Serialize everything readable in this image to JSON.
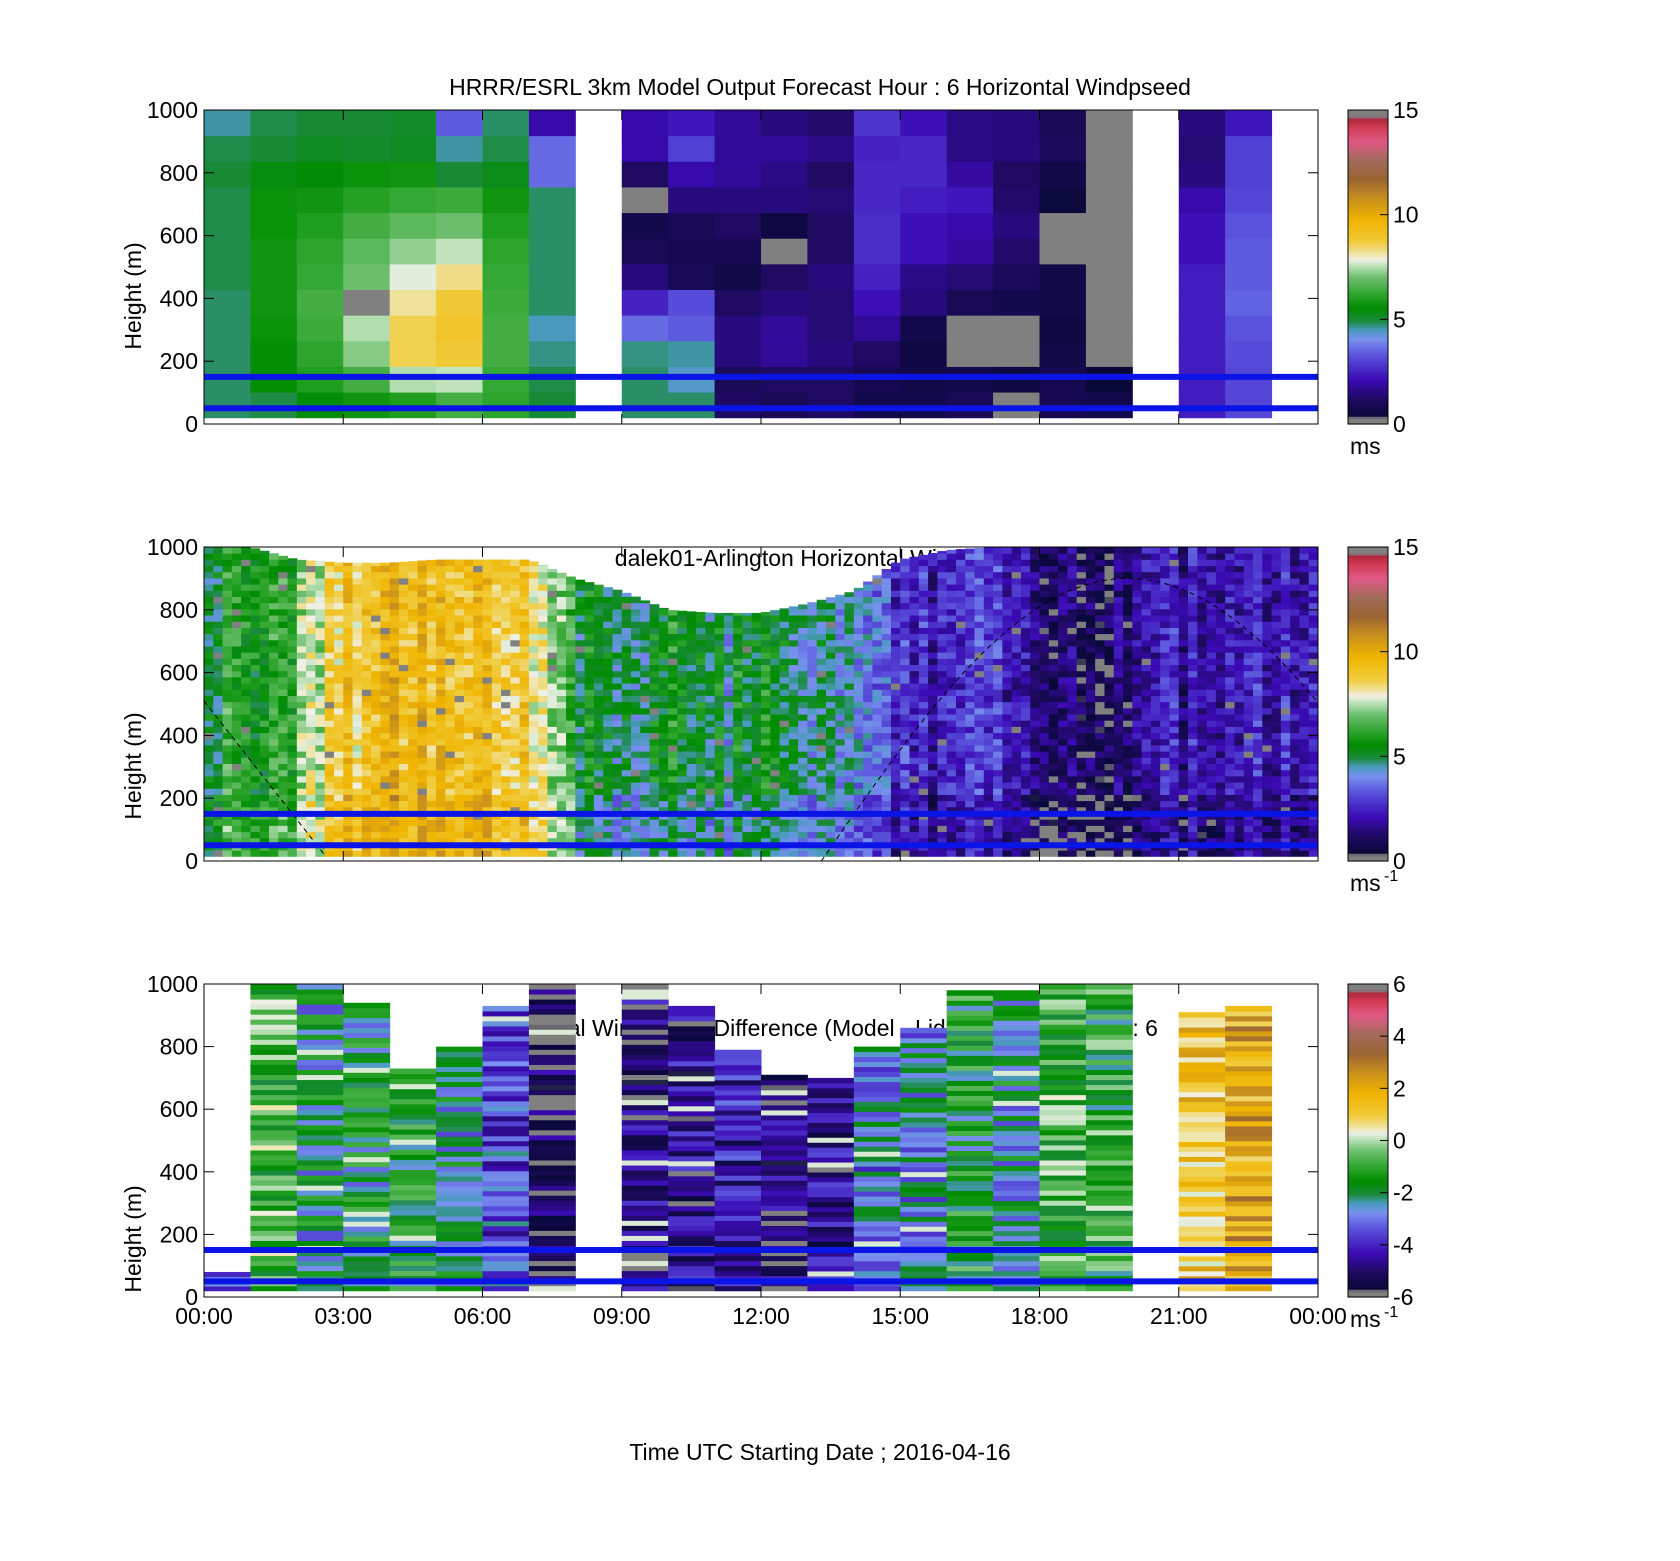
{
  "chart_data": [
    {
      "type": "heatmap",
      "title": "HRRR/ESRL 3km Model Output   Forecast Hour : 6 Horizontal Windpseed",
      "ylabel": "Height (m)",
      "xlabel": "",
      "ylim": [
        0,
        1000
      ],
      "y_ticks": [
        "0",
        "200",
        "400",
        "600",
        "800",
        "1000"
      ],
      "x_hours": [
        0,
        24
      ],
      "colorbar": {
        "range": [
          0,
          15
        ],
        "ticks": [
          "0",
          "5",
          "10",
          "15"
        ],
        "unit_label": "ms",
        "scale": "speed"
      },
      "reference_lines_m": [
        150,
        50
      ],
      "reference_line_color": "#0a14e6",
      "columns": [
        {
          "start_hour": 0.0,
          "values": [
            4.8,
            4.8,
            4.8,
            4.8,
            4.8,
            4.9,
            4.9,
            4.9,
            4.9,
            5.0,
            4.9,
            4.6
          ]
        },
        {
          "start_hour": 1.0,
          "values": [
            4.9,
            5.6,
            5.6,
            5.7,
            5.8,
            5.8,
            5.8,
            5.7,
            5.7,
            5.4,
            5.0,
            4.9
          ]
        },
        {
          "start_hour": 2.0,
          "values": [
            5.5,
            6.0,
            6.2,
            6.4,
            6.5,
            6.3,
            6.2,
            6.0,
            5.8,
            5.5,
            5.2,
            5.0
          ]
        },
        {
          "start_hour": 3.0,
          "values": [
            5.8,
            6.5,
            7.2,
            7.5,
            0.2,
            7.0,
            6.8,
            6.5,
            6.1,
            5.7,
            5.1,
            5.0
          ]
        },
        {
          "start_hour": 4.0,
          "values": [
            6.0,
            7.5,
            8.6,
            8.6,
            8.2,
            7.8,
            7.3,
            6.8,
            6.3,
            5.8,
            5.2,
            5.1
          ]
        },
        {
          "start_hour": 5.0,
          "values": [
            6.5,
            7.6,
            8.8,
            9.0,
            8.8,
            8.3,
            7.6,
            7.0,
            6.4,
            5.0,
            4.6,
            3.4
          ]
        },
        {
          "start_hour": 6.0,
          "values": [
            6.2,
            6.3,
            6.5,
            6.5,
            6.4,
            6.3,
            6.2,
            6.0,
            5.8,
            5.3,
            4.9,
            4.8
          ]
        },
        {
          "start_hour": 7.0,
          "values": [
            5.0,
            4.9,
            4.7,
            4.5,
            4.8,
            4.8,
            4.8,
            4.8,
            4.8,
            3.6,
            3.6,
            2.0
          ]
        },
        {
          "start_hour": 8.0,
          "values": []
        },
        {
          "start_hour": 9.0,
          "values": [
            4.8,
            4.8,
            4.7,
            3.6,
            2.5,
            1.5,
            1.0,
            0.8,
            0.1,
            1.2,
            2.0,
            2.0
          ]
        },
        {
          "start_hour": 10.0,
          "values": [
            4.8,
            4.4,
            4.6,
            3.4,
            3.2,
            1.0,
            0.9,
            1.0,
            1.5,
            2.0,
            3.0,
            2.3
          ]
        },
        {
          "start_hour": 11.0,
          "values": [
            1.2,
            1.0,
            1.5,
            1.5,
            1.2,
            0.7,
            0.9,
            1.2,
            1.5,
            1.8,
            1.8,
            1.8
          ]
        },
        {
          "start_hour": 12.0,
          "values": [
            1.0,
            1.2,
            1.8,
            1.8,
            1.5,
            1.2,
            0.2,
            0.6,
            1.5,
            1.6,
            1.8,
            1.5
          ]
        },
        {
          "start_hour": 13.0,
          "values": [
            1.2,
            1.2,
            1.5,
            1.4,
            1.4,
            1.5,
            1.2,
            1.2,
            1.4,
            1.2,
            1.6,
            1.3
          ]
        },
        {
          "start_hour": 14.0,
          "values": [
            0.8,
            0.9,
            1.2,
            1.8,
            2.2,
            2.5,
            2.7,
            2.7,
            2.6,
            2.6,
            2.5,
            2.8
          ]
        },
        {
          "start_hour": 15.0,
          "values": [
            0.8,
            0.7,
            0.6,
            0.8,
            1.5,
            1.6,
            2.2,
            2.2,
            2.4,
            2.6,
            2.6,
            2.2
          ]
        },
        {
          "start_hour": 16.0,
          "values": [
            1.0,
            0.8,
            0.2,
            0.2,
            1.0,
            1.4,
            1.9,
            2.0,
            2.3,
            1.9,
            1.6,
            1.6
          ]
        },
        {
          "start_hour": 17.0,
          "values": [
            0.2,
            0.6,
            0.3,
            0.2,
            0.8,
            1.1,
            1.3,
            1.5,
            1.3,
            1.2,
            1.5,
            1.5
          ]
        },
        {
          "start_hour": 18.0,
          "values": [
            0.9,
            0.9,
            0.7,
            0.6,
            0.7,
            0.7,
            0.2,
            0.2,
            0.5,
            0.7,
            1.1,
            1.0
          ]
        },
        {
          "start_hour": 19.0,
          "values": [
            0.8,
            0.4,
            0.2,
            0.2,
            0.2,
            0.2,
            0.2,
            0.2,
            0.2,
            0.2,
            0.3,
            0.3
          ]
        },
        {
          "start_hour": 20.0,
          "values": []
        },
        {
          "start_hour": 21.0,
          "values": [
            2.4,
            2.4,
            2.4,
            2.4,
            2.4,
            2.4,
            2.2,
            2.2,
            2.0,
            1.5,
            1.4,
            1.5
          ]
        },
        {
          "start_hour": 22.0,
          "values": [
            3.1,
            3.1,
            3.2,
            3.3,
            3.5,
            3.4,
            3.4,
            3.3,
            3.1,
            3.0,
            3.0,
            2.3
          ]
        }
      ]
    },
    {
      "type": "heatmap",
      "title": "dalek01-Arlington  Horizontal Windspeed",
      "ylabel": "Height (m)",
      "xlabel": "",
      "ylim": [
        0,
        1000
      ],
      "y_ticks": [
        "0",
        "200",
        "400",
        "600",
        "800",
        "1000"
      ],
      "x_hours": [
        0,
        24
      ],
      "colorbar": {
        "range": [
          0,
          15
        ],
        "ticks": [
          "0",
          "5",
          "10",
          "15"
        ],
        "unit_label": "ms",
        "unit_superscript": "-1",
        "scale": "speed"
      },
      "reference_lines_m": [
        150,
        50
      ],
      "reference_line_color": "#0a14e6",
      "dashed_curve": "daylight envelope (black dashed)",
      "profile_nodes_hours": [
        0,
        1,
        2,
        3,
        4,
        5,
        6,
        7,
        8,
        9,
        10,
        11,
        12,
        13,
        14,
        15,
        16,
        17,
        18,
        19,
        20,
        21,
        22,
        23,
        24
      ],
      "profile_speed": [
        6.0,
        5.2,
        6.8,
        8.8,
        9.6,
        9.4,
        9.2,
        8.6,
        5.8,
        5.0,
        5.5,
        5.0,
        5.2,
        5.0,
        4.8,
        2.8,
        2.6,
        2.4,
        1.6,
        1.2,
        1.8,
        2.0,
        2.0,
        2.2,
        2.4
      ],
      "profile_top_m": [
        1000,
        1000,
        960,
        950,
        950,
        960,
        960,
        960,
        900,
        860,
        800,
        790,
        790,
        820,
        860,
        960,
        990,
        1000,
        1000,
        1000,
        1000,
        1000,
        1000,
        1000,
        1000
      ]
    },
    {
      "type": "heatmap",
      "title": "Horizontal Windspeed Difference (Model - Lidar) Forecast Hour : 6",
      "ylabel": "Height (m)",
      "xlabel": "Time UTC  Starting Date ; 2016-04-16",
      "ylim": [
        0,
        1000
      ],
      "y_ticks": [
        "0",
        "200",
        "400",
        "600",
        "800",
        "1000"
      ],
      "x_ticks": [
        "00:00",
        "03:00",
        "06:00",
        "09:00",
        "12:00",
        "15:00",
        "18:00",
        "21:00",
        "00:00"
      ],
      "x_hours": [
        0,
        24
      ],
      "colorbar": {
        "range": [
          -6,
          6
        ],
        "ticks": [
          "-6",
          "-4",
          "-2",
          "0",
          "2",
          "4",
          "6"
        ],
        "unit_label": "ms",
        "unit_superscript": "-1",
        "scale": "diff"
      },
      "reference_lines_m": [
        150,
        50
      ],
      "reference_line_color": "#0a14e6",
      "columns": [
        {
          "start_hour": 0.0,
          "top_m": 80,
          "mean": -2.8
        },
        {
          "start_hour": 1.0,
          "top_m": 1000,
          "mean": -0.8
        },
        {
          "start_hour": 2.0,
          "top_m": 1000,
          "mean": -2.2
        },
        {
          "start_hour": 3.0,
          "top_m": 940,
          "mean": -2.0
        },
        {
          "start_hour": 4.0,
          "top_m": 730,
          "mean": -1.6
        },
        {
          "start_hour": 5.0,
          "top_m": 800,
          "mean": -2.4
        },
        {
          "start_hour": 6.0,
          "top_m": 930,
          "mean": -3.5
        },
        {
          "start_hour": 7.0,
          "top_m": 1000,
          "mean": -5.4
        },
        {
          "start_hour": 8.0,
          "top_m": 0,
          "mean": 0
        },
        {
          "start_hour": 9.0,
          "top_m": 1000,
          "mean": -5.0
        },
        {
          "start_hour": 10.0,
          "top_m": 930,
          "mean": -4.6
        },
        {
          "start_hour": 11.0,
          "top_m": 790,
          "mean": -4.2
        },
        {
          "start_hour": 12.0,
          "top_m": 710,
          "mean": -5.0
        },
        {
          "start_hour": 13.0,
          "top_m": 700,
          "mean": -4.6
        },
        {
          "start_hour": 14.0,
          "top_m": 800,
          "mean": -2.8
        },
        {
          "start_hour": 15.0,
          "top_m": 860,
          "mean": -2.5
        },
        {
          "start_hour": 16.0,
          "top_m": 980,
          "mean": -1.6
        },
        {
          "start_hour": 17.0,
          "top_m": 980,
          "mean": -2.2
        },
        {
          "start_hour": 18.0,
          "top_m": 1000,
          "mean": -0.8
        },
        {
          "start_hour": 19.0,
          "top_m": 1000,
          "mean": -1.2
        },
        {
          "start_hour": 20.0,
          "top_m": 0,
          "mean": 0
        },
        {
          "start_hour": 21.0,
          "top_m": 910,
          "mean": 1.4
        },
        {
          "start_hour": 22.0,
          "top_m": 930,
          "mean": 2.0
        }
      ]
    }
  ]
}
